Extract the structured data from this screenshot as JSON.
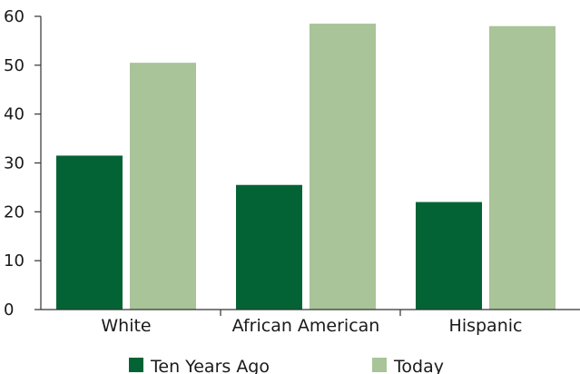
{
  "chart_data": {
    "type": "bar",
    "categories": [
      "White",
      "African American",
      "Hispanic"
    ],
    "series": [
      {
        "name": "Ten Years Ago",
        "color": "#046335",
        "values": [
          31.5,
          25.5,
          22
        ]
      },
      {
        "name": "Today",
        "color": "#a8c498",
        "values": [
          50.5,
          58.5,
          58
        ]
      }
    ],
    "y_ticks": [
      "0",
      "10",
      "20",
      "30",
      "40",
      "50",
      "60"
    ],
    "ylim": [
      0,
      60
    ],
    "legend_position": "bottom",
    "grid": false
  }
}
